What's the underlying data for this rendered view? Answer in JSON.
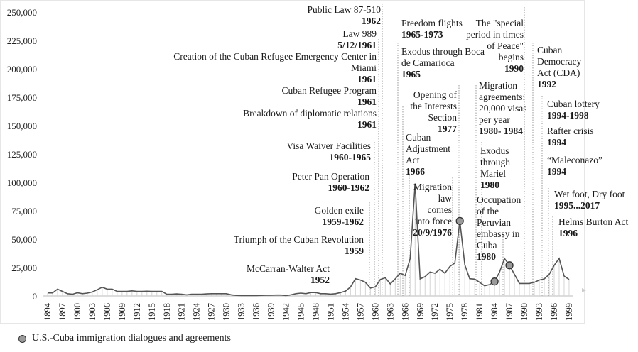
{
  "chart_data": {
    "type": "area",
    "title": "",
    "xlabel": "",
    "ylabel": "",
    "ylim": [
      0,
      250000
    ],
    "xlim": [
      1894,
      1999
    ],
    "grid": false,
    "y_ticks": [
      "0",
      "25,000",
      "50,000",
      "75,000",
      "100,000",
      "125,000",
      "150,000",
      "175,000",
      "200,000",
      "225,000",
      "250,000"
    ],
    "x_ticks": [
      "1894",
      "1897",
      "1900",
      "1903",
      "1906",
      "1909",
      "1912",
      "1915",
      "1918",
      "1921",
      "1924",
      "1927",
      "1930",
      "1933",
      "1936",
      "1939",
      "1942",
      "1945",
      "1948",
      "1951",
      "1954",
      "1957",
      "1960",
      "1963",
      "1966",
      "1969",
      "1972",
      "1975",
      "1978",
      "1981",
      "1984",
      "1987",
      "1990",
      "1993",
      "1996",
      "1999"
    ],
    "series": [
      {
        "start_year": 1894,
        "values": [
          2700,
          2700,
          6000,
          4000,
          2000,
          1500,
          2800,
          2000,
          2500,
          3500,
          5500,
          7700,
          6000,
          6000,
          4000,
          4000,
          4000,
          4500,
          4000,
          4000,
          4200,
          4000,
          4000,
          4000,
          1500,
          1500,
          1800,
          1500,
          1000,
          1500,
          1500,
          1500,
          1800,
          2000,
          2000,
          2000,
          2000,
          1000,
          500,
          400,
          300,
          400,
          400,
          500,
          600,
          700,
          800,
          800,
          300,
          1000,
          2000,
          2500,
          2000,
          3000,
          3000,
          2000,
          2000,
          1600,
          2000,
          3000,
          4300,
          8000,
          15200,
          14000,
          12000,
          7000,
          8000,
          14500,
          16000,
          10600,
          15000,
          20000,
          18000,
          33000,
          99000,
          15000,
          17000,
          21000,
          20000,
          23500,
          20000,
          26000,
          29000,
          66000,
          27500,
          15200,
          14800,
          12000,
          9000,
          10000,
          12700,
          21000,
          33000,
          27000,
          19000,
          11000,
          11000,
          11000,
          12000,
          14000,
          15000,
          19000,
          27000,
          33000,
          17500,
          14500
        ]
      }
    ],
    "markers": [
      {
        "year": 1977,
        "value": 66000
      },
      {
        "year": 1984,
        "value": 12700
      },
      {
        "year": 1987,
        "value": 27000
      }
    ],
    "marker_color": "#9a9a9a",
    "line_color": "#555555",
    "legend": {
      "label": "U.S.-Cuba immigration dialogues and agreements",
      "placement": "bottom-left"
    },
    "annotations": [
      {
        "lines": [
          {
            "t": "Public Law 87-510",
            "b": false
          },
          {
            "t": "1962",
            "b": true
          }
        ]
      },
      {
        "lines": [
          {
            "t": "Law 989",
            "b": false
          },
          {
            "t": "5/12/1961",
            "b": true
          }
        ]
      },
      {
        "lines": [
          {
            "t": "Creation of the Cuban Refugee Emergency Center in",
            "b": false
          },
          {
            "t": "Miami",
            "b": false
          },
          {
            "t": "1961",
            "b": true
          }
        ]
      },
      {
        "lines": [
          {
            "t": "Cuban Refugee Program",
            "b": false
          },
          {
            "t": "1961",
            "b": true
          }
        ]
      },
      {
        "lines": [
          {
            "t": "Breakdown of diplomatic relations",
            "b": false
          },
          {
            "t": "1961",
            "b": true
          }
        ]
      },
      {
        "lines": [
          {
            "t": "Visa Waiver Facilities",
            "b": false
          },
          {
            "t": "1960-1965",
            "b": true
          }
        ]
      },
      {
        "lines": [
          {
            "t": "Peter Pan Operation",
            "b": false
          },
          {
            "t": "1960-1962",
            "b": true
          }
        ]
      },
      {
        "lines": [
          {
            "t": "Golden exile",
            "b": false
          },
          {
            "t": "1959-1962",
            "b": true
          }
        ]
      },
      {
        "lines": [
          {
            "t": "Triumph of the Cuban Revolution",
            "b": false
          },
          {
            "t": "1959",
            "b": true
          }
        ]
      },
      {
        "lines": [
          {
            "t": "McCarran-Walter Act",
            "b": false
          },
          {
            "t": "1952",
            "b": true
          }
        ]
      },
      {
        "lines": [
          {
            "t": "Freedom flights",
            "b": false
          },
          {
            "t": "1965-1973",
            "b": true
          }
        ]
      },
      {
        "lines": [
          {
            "t": "Exodus through Boca",
            "b": false
          },
          {
            "t": "de Camarioca",
            "b": false
          },
          {
            "t": "1965",
            "b": true
          }
        ]
      },
      {
        "lines": [
          {
            "t": "The \"special",
            "b": false
          },
          {
            "t": "period in times",
            "b": false
          },
          {
            "t": "of Peace\"",
            "b": false
          },
          {
            "t": "begins",
            "b": false
          },
          {
            "t": "1990",
            "b": true
          }
        ]
      },
      {
        "lines": [
          {
            "t": "Opening of",
            "b": false
          },
          {
            "t": "the Interests",
            "b": false
          },
          {
            "t": "Section",
            "b": false
          },
          {
            "t": "1977",
            "b": true
          }
        ]
      },
      {
        "lines": [
          {
            "t": "Cuban",
            "b": false
          },
          {
            "t": "Adjustment",
            "b": false
          },
          {
            "t": "Act",
            "b": false
          },
          {
            "t": "1966",
            "b": true
          }
        ]
      },
      {
        "lines": [
          {
            "t": "Migration",
            "b": false
          },
          {
            "t": "agreements:",
            "b": false
          },
          {
            "t": "20,000 visas",
            "b": false
          },
          {
            "t": "per year",
            "b": false
          },
          {
            "t": "1980- 1984",
            "b": true
          }
        ]
      },
      {
        "lines": [
          {
            "t": "Exodus",
            "b": false
          },
          {
            "t": "through",
            "b": false
          },
          {
            "t": "Mariel",
            "b": false
          },
          {
            "t": "1980",
            "b": true
          }
        ]
      },
      {
        "lines": [
          {
            "t": "Migration",
            "b": false
          },
          {
            "t": "law",
            "b": false
          },
          {
            "t": "comes",
            "b": false
          },
          {
            "t": "into force",
            "b": false
          },
          {
            "t": "20/9/1976",
            "b": true
          }
        ]
      },
      {
        "lines": [
          {
            "t": "Occupation",
            "b": false
          },
          {
            "t": "of the",
            "b": false
          },
          {
            "t": "Peruvian",
            "b": false
          },
          {
            "t": "embassy in",
            "b": false
          },
          {
            "t": "Cuba",
            "b": false
          },
          {
            "t": "1980",
            "b": true
          }
        ]
      },
      {
        "lines": [
          {
            "t": "Cuban",
            "b": false
          },
          {
            "t": "Democracy",
            "b": false
          },
          {
            "t": "Act (CDA)",
            "b": false
          },
          {
            "t": "1992",
            "b": true
          }
        ]
      },
      {
        "lines": [
          {
            "t": "Cuban lottery",
            "b": false
          },
          {
            "t": "1994-1998",
            "b": true
          }
        ]
      },
      {
        "lines": [
          {
            "t": "Rafter crisis",
            "b": false
          },
          {
            "t": "1994",
            "b": true
          }
        ]
      },
      {
        "lines": [
          {
            "t": "“Maleconazo”",
            "b": false
          },
          {
            "t": "1994",
            "b": true
          }
        ]
      },
      {
        "lines": [
          {
            "t": "Wet foot, Dry foot",
            "b": false
          },
          {
            "t": "1995...2017",
            "b": true
          }
        ]
      },
      {
        "lines": [
          {
            "t": "Helms Burton Act",
            "b": false
          },
          {
            "t": "1996",
            "b": true
          }
        ]
      }
    ]
  }
}
